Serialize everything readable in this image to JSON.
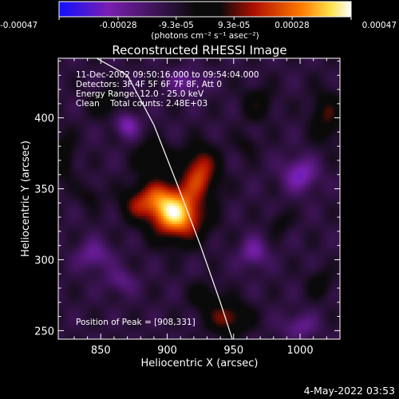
{
  "colorbar": {
    "tick_labels": [
      "-0.00047",
      "-0.00028",
      "-9.3e-05",
      "9.3e-05",
      "0.00028",
      "0.00047"
    ],
    "tick_values": [
      -0.00047,
      -0.00028,
      -9.3e-05,
      9.3e-05,
      0.00028,
      0.00047
    ],
    "range": [
      -0.00047,
      0.00047
    ],
    "units_label": "(photons cm⁻² s⁻¹ asec⁻²)",
    "colors": [
      "#1010ff",
      "#7a1fb0",
      "#0a0a0a",
      "#b01000",
      "#ff7a00",
      "#ffe24a",
      "#ffffff"
    ]
  },
  "chart_data": {
    "type": "heatmap",
    "title": "Reconstructed RHESSI Image",
    "xlabel": "Heliocentric X (arcsec)",
    "ylabel": "Heliocentric Y (arcsec)",
    "xlim": [
      818,
      1030
    ],
    "ylim": [
      244,
      442
    ],
    "x_ticks": [
      850,
      900,
      950,
      1000
    ],
    "y_ticks": [
      250,
      300,
      350,
      400
    ],
    "x_tick_labels": [
      "850",
      "900",
      "950",
      "1000"
    ],
    "y_tick_labels": [
      "250",
      "300",
      "350",
      "400"
    ],
    "info_lines": [
      "11-Dec-2002 09:50:16.000 to 09:54:04.000",
      "Detectors: 3F 4F 5F 6F 7F 8F, Att 0",
      "Energy Range: 12.0 - 25.0 keV",
      "Clean    Total counts: 2.48E+03"
    ],
    "peak_label": "Position of Peak = [908,331]",
    "peak_position": [
      908,
      331
    ],
    "limb_curve": [
      [
        843,
        444
      ],
      [
        870,
        430
      ],
      [
        890,
        395
      ],
      [
        908,
        352
      ],
      [
        925,
        310
      ],
      [
        940,
        270
      ],
      [
        949,
        244
      ]
    ],
    "sources": [
      {
        "x": 908,
        "y": 331,
        "amp": 0.00047,
        "sx": 14,
        "sy": 12
      },
      {
        "x": 893,
        "y": 343,
        "amp": 0.00026,
        "sx": 12,
        "sy": 10
      },
      {
        "x": 924,
        "y": 355,
        "amp": 0.00022,
        "sx": 10,
        "sy": 9
      },
      {
        "x": 925,
        "y": 369,
        "amp": 0.00021,
        "sx": 9,
        "sy": 9
      },
      {
        "x": 890,
        "y": 372,
        "amp": 0.00019,
        "sx": 9,
        "sy": 8
      },
      {
        "x": 875,
        "y": 339,
        "amp": 0.00014,
        "sx": 8,
        "sy": 8
      },
      {
        "x": 946,
        "y": 259,
        "amp": 0.00024,
        "sx": 11,
        "sy": 8
      },
      {
        "x": 928,
        "y": 274,
        "amp": 0.00012,
        "sx": 8,
        "sy": 7
      },
      {
        "x": 1020,
        "y": 401,
        "amp": 0.00018,
        "sx": 8,
        "sy": 12
      },
      {
        "x": 968,
        "y": 410,
        "amp": 0.00014,
        "sx": 8,
        "sy": 8
      },
      {
        "x": 985,
        "y": 326,
        "amp": 9e-05,
        "sx": 6,
        "sy": 6
      },
      {
        "x": 822,
        "y": 372,
        "amp": 0.00013,
        "sx": 6,
        "sy": 12
      },
      {
        "x": 855,
        "y": 410,
        "amp": 0.00012,
        "sx": 9,
        "sy": 7
      },
      {
        "x": 842,
        "y": 345,
        "amp": 9e-05,
        "sx": 6,
        "sy": 6
      },
      {
        "x": 1015,
        "y": 283,
        "amp": 0.00011,
        "sx": 7,
        "sy": 7
      },
      {
        "x": 960,
        "y": 381,
        "amp": 8e-05,
        "sx": 6,
        "sy": 6
      },
      {
        "x": 1000,
        "y": 360,
        "amp": -0.00022,
        "sx": 9,
        "sy": 8
      },
      {
        "x": 965,
        "y": 305,
        "amp": -0.00018,
        "sx": 7,
        "sy": 7
      },
      {
        "x": 915,
        "y": 425,
        "amp": -0.00015,
        "sx": 10,
        "sy": 6
      },
      {
        "x": 870,
        "y": 395,
        "amp": -0.0002,
        "sx": 6,
        "sy": 6
      },
      {
        "x": 845,
        "y": 303,
        "amp": -0.00016,
        "sx": 9,
        "sy": 7
      },
      {
        "x": 1000,
        "y": 253,
        "amp": -0.00014,
        "sx": 9,
        "sy": 6
      },
      {
        "x": 865,
        "y": 285,
        "amp": -0.00012,
        "sx": 8,
        "sy": 6
      }
    ]
  },
  "footer": {
    "timestamp": "4-May-2022 03:53"
  }
}
